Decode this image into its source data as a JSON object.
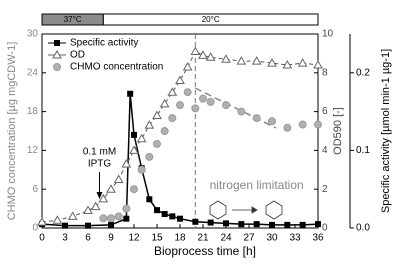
{
  "chart_data": {
    "type": "multi-axis",
    "xlabel": "Bioprocess time  [h]",
    "ylabel": "CHMO concentration [µg mgCDW-1]",
    "y2label": "OD590 [-]",
    "y3label": "Specific activity [µmol min-1 µg-1]",
    "xlim": [
      0,
      36
    ],
    "xticks": [
      0,
      3,
      6,
      9,
      12,
      15,
      18,
      21,
      24,
      27,
      30,
      33,
      36
    ],
    "ylim": [
      0,
      30
    ],
    "yticks": [
      0,
      6,
      12,
      18,
      24,
      30
    ],
    "y2lim": [
      0,
      10
    ],
    "y2ticks": [
      0,
      2,
      4,
      6,
      8,
      10
    ],
    "y3lim": [
      0,
      0.25
    ],
    "y3ticks": [
      {
        "value": 0,
        "label": "0.0"
      },
      {
        "value": 0.1,
        "label": "0.1"
      },
      {
        "value": 0.2,
        "label": "0.2"
      }
    ],
    "phases": [
      {
        "label": "37°C",
        "from": 0,
        "to": 8,
        "color": "#8c8c8c"
      },
      {
        "label": "20°C",
        "from": 8,
        "to": 36,
        "color": "#ffffff"
      }
    ],
    "vline_x": 20,
    "annotations": [
      {
        "text": "0.1 mM",
        "x": 7.5
      },
      {
        "text": "IPTG",
        "x": 7.5
      },
      {
        "text": "nitrogen limitation",
        "x": 28
      }
    ],
    "series": [
      {
        "name": "Specific activity",
        "axis": "y3",
        "marker": "square",
        "line": "solid",
        "color": "#000000",
        "x": [
          0,
          3,
          6,
          9,
          11,
          11.5,
          12,
          13,
          14,
          15,
          16,
          17,
          18,
          20,
          22,
          24,
          26,
          28,
          30,
          32,
          34,
          36
        ],
        "values": [
          0.005,
          0.003,
          0.003,
          0.004,
          0.012,
          0.173,
          0.12,
          0.077,
          0.037,
          0.023,
          0.018,
          0.015,
          0.012,
          0.008,
          0.007,
          0.006,
          0.005,
          0.005,
          0.004,
          0.004,
          0.004,
          0.005
        ]
      },
      {
        "name": "OD",
        "axis": "y2",
        "marker": "triangle",
        "line": "dashed",
        "color": "#666666",
        "x": [
          0,
          2,
          4,
          6,
          7,
          8,
          9,
          10,
          11,
          12,
          13,
          14,
          15,
          16,
          17,
          18,
          19,
          20,
          21,
          22,
          24,
          26,
          28,
          30,
          32,
          34,
          36
        ],
        "values": [
          0.3,
          0.4,
          0.6,
          0.9,
          1.1,
          1.5,
          2.0,
          2.5,
          3.3,
          4.0,
          4.6,
          5.3,
          5.8,
          6.4,
          7.0,
          7.6,
          8.3,
          9.1,
          8.9,
          8.8,
          8.7,
          8.6,
          8.6,
          8.5,
          8.4,
          8.5,
          8.4
        ]
      },
      {
        "name": "CHMO concentration",
        "axis": "y",
        "marker": "circle",
        "line": "none",
        "color": "#9a9a9a",
        "x": [
          8,
          9,
          10,
          11,
          12,
          13,
          14,
          15,
          16,
          17,
          18,
          19,
          20,
          21,
          22,
          24,
          26,
          28,
          30,
          32,
          34,
          36
        ],
        "values": [
          1.5,
          1.5,
          1.8,
          3,
          6,
          9,
          11,
          13,
          15,
          17,
          19,
          21,
          18.5,
          20,
          19.5,
          19,
          18,
          17,
          16.5,
          15.5,
          16,
          16
        ]
      }
    ]
  }
}
